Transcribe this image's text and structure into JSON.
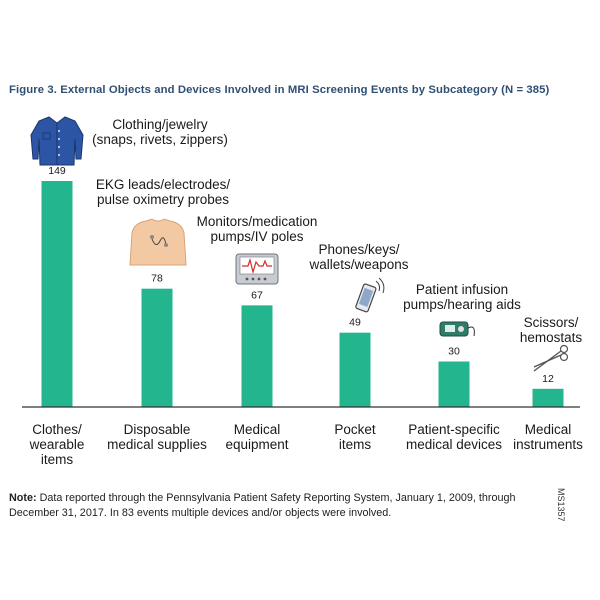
{
  "title": "Figure 3. External Objects and Devices Involved in MRI Screening Events by Subcategory (N = 385)",
  "note_label": "Note:",
  "note_text": " Data reported through the Pennsylvania Patient Safety Reporting System, January 1, 2009, through December 31, 2017. In 83 events multiple devices and/or objects were involved.",
  "code": "MS1357",
  "colors": {
    "bar": "#22b58e",
    "title": "#2f4f73",
    "axis": "#333333"
  },
  "chart_data": {
    "type": "bar",
    "title": "Figure 3. External Objects and Devices Involved in MRI Screening Events by Subcategory (N = 385)",
    "categories": [
      [
        "Clothes/",
        "wearable",
        "items"
      ],
      [
        "Disposable",
        "medical supplies"
      ],
      [
        "Medical",
        "equipment"
      ],
      [
        "Pocket",
        "items"
      ],
      [
        "Patient-specific",
        "medical devices"
      ],
      [
        "Medical",
        "instruments"
      ]
    ],
    "values": [
      149,
      78,
      67,
      49,
      30,
      12
    ],
    "annotations": [
      [
        "Clothing/jewelry",
        "(snaps, rivets, zippers)"
      ],
      [
        "EKG leads/electrodes/",
        "pulse oximetry probes"
      ],
      [
        "Monitors/medication",
        "pumps/IV poles"
      ],
      [
        "Phones/keys/",
        "wallets/weapons"
      ],
      [
        "Patient infusion",
        "pumps/hearing aids"
      ],
      [
        "Scissors/",
        "hemostats"
      ]
    ],
    "icons": [
      "shirt-icon",
      "torso-electrodes-icon",
      "monitor-icon",
      "phone-icon",
      "infusion-pump-icon",
      "scissors-icon"
    ],
    "xlabel": "",
    "ylabel": "",
    "ylim": [
      0,
      149
    ],
    "grid": false,
    "legend": "none"
  }
}
